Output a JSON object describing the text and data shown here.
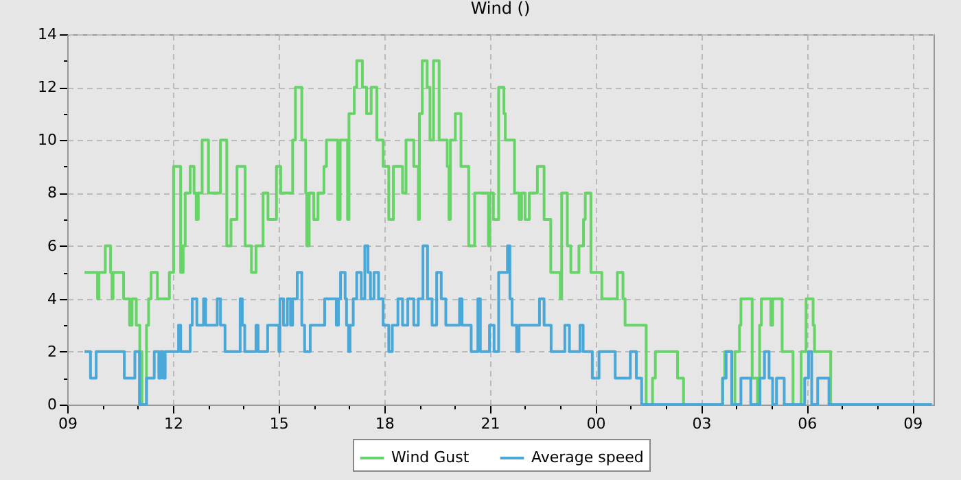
{
  "chart_data": {
    "type": "step",
    "title": "Wind ()",
    "legend": "bottom",
    "grid": true,
    "line_style": "solid",
    "marker": "none",
    "xlim": [
      9,
      33.6
    ],
    "ylim": [
      0,
      14
    ],
    "xticks": [
      {
        "value": 9,
        "label": "09"
      },
      {
        "value": 10,
        "label": null
      },
      {
        "value": 11,
        "label": null
      },
      {
        "value": 12,
        "label": "12"
      },
      {
        "value": 13,
        "label": null
      },
      {
        "value": 14,
        "label": null
      },
      {
        "value": 15,
        "label": "15"
      },
      {
        "value": 16,
        "label": null
      },
      {
        "value": 17,
        "label": null
      },
      {
        "value": 18,
        "label": "18"
      },
      {
        "value": 19,
        "label": null
      },
      {
        "value": 20,
        "label": null
      },
      {
        "value": 21,
        "label": "21"
      },
      {
        "value": 22,
        "label": null
      },
      {
        "value": 23,
        "label": null
      },
      {
        "value": 24,
        "label": "00"
      },
      {
        "value": 25,
        "label": null
      },
      {
        "value": 26,
        "label": null
      },
      {
        "value": 27,
        "label": "03"
      },
      {
        "value": 28,
        "label": null
      },
      {
        "value": 29,
        "label": null
      },
      {
        "value": 30,
        "label": "06"
      },
      {
        "value": 31,
        "label": null
      },
      {
        "value": 32,
        "label": null
      },
      {
        "value": 33,
        "label": "09"
      }
    ],
    "yticks": [
      0,
      {
        "value": 1,
        "label": null
      },
      2,
      {
        "value": 3,
        "label": null
      },
      4,
      {
        "value": 5,
        "label": null
      },
      6,
      {
        "value": 7,
        "label": null
      },
      8,
      {
        "value": 9,
        "label": null
      },
      10,
      {
        "value": 11,
        "label": null
      },
      12,
      {
        "value": 13,
        "label": null
      },
      14
    ],
    "series": [
      {
        "name": "Wind Gust",
        "color": "#66d466",
        "x": [
          9.49,
          9.86,
          9.9,
          10.08,
          10.23,
          10.27,
          10.3,
          10.6,
          10.77,
          10.84,
          10.96,
          11.06,
          11.12,
          11.25,
          11.31,
          11.38,
          11.56,
          11.9,
          12.02,
          12.22,
          12.29,
          12.35,
          12.49,
          12.6,
          12.66,
          12.72,
          12.83,
          13.01,
          13.35,
          13.53,
          13.65,
          13.82,
          14.05,
          14.23,
          14.36,
          14.56,
          14.7,
          14.94,
          15.06,
          15.4,
          15.48,
          15.66,
          15.77,
          15.8,
          15.87,
          16.0,
          16.12,
          16.29,
          16.36,
          16.68,
          16.75,
          16.96,
          17.0,
          17.15,
          17.22,
          17.38,
          17.5,
          17.63,
          17.79,
          17.97,
          18.13,
          18.26,
          18.52,
          18.62,
          18.84,
          18.97,
          19.0,
          19.08,
          19.22,
          19.3,
          19.4,
          19.56,
          19.79,
          19.84,
          19.88,
          20.02,
          20.18,
          20.4,
          20.57,
          20.79,
          20.96,
          21.0,
          21.1,
          21.25,
          21.4,
          21.44,
          21.7,
          21.83,
          21.9,
          22.0,
          22.12,
          22.35,
          22.54,
          22.73,
          23.0,
          23.04,
          23.2,
          23.3,
          23.53,
          23.66,
          23.71,
          23.87,
          24.18,
          24.62,
          24.78,
          24.84,
          25.44,
          25.62,
          25.7,
          26.33,
          26.5,
          27.61,
          27.67,
          27.87,
          27.96,
          28.09,
          28.13,
          28.45,
          28.6,
          28.66,
          28.71,
          28.98,
          29.03,
          29.3,
          29.61,
          29.84,
          29.98,
          30.18,
          30.22,
          30.68,
          33.55
        ],
        "values": [
          5,
          4,
          5,
          6,
          5,
          4,
          5,
          4,
          3,
          4,
          3,
          2,
          0,
          3,
          4,
          5,
          4,
          5,
          9,
          5,
          6,
          8,
          9,
          8,
          7,
          8,
          10,
          8,
          10,
          6,
          7,
          9,
          6,
          5,
          6,
          8,
          7,
          9,
          8,
          10,
          12,
          10,
          8,
          6,
          8,
          7,
          8,
          9,
          10,
          7,
          10,
          7,
          11,
          12,
          13,
          12,
          11,
          12,
          10,
          9,
          7,
          9,
          8,
          10,
          9,
          7,
          11,
          13,
          12,
          10,
          13,
          10,
          9,
          7,
          10,
          11,
          9,
          6,
          8,
          8,
          6,
          8,
          7,
          12,
          11,
          10,
          8,
          7,
          8,
          7,
          8,
          9,
          7,
          5,
          4,
          8,
          6,
          5,
          6,
          7,
          8,
          5,
          4,
          5,
          4,
          3,
          0,
          1,
          2,
          1,
          0,
          1,
          2,
          0,
          2,
          3,
          4,
          1,
          0,
          3,
          4,
          3,
          4,
          2,
          0,
          2,
          4,
          3,
          2,
          0,
          0
        ]
      },
      {
        "name": "Average speed",
        "color": "#4aa8d8",
        "x": [
          9.49,
          9.66,
          9.82,
          10.62,
          10.92,
          11.05,
          11.25,
          11.47,
          11.6,
          11.65,
          11.72,
          11.78,
          11.99,
          12.16,
          12.22,
          12.49,
          12.55,
          12.68,
          12.87,
          12.93,
          13.26,
          13.35,
          13.48,
          13.91,
          13.97,
          14.04,
          14.36,
          14.42,
          14.69,
          15.01,
          15.04,
          15.14,
          15.25,
          15.34,
          15.4,
          15.53,
          15.66,
          15.74,
          15.9,
          16.31,
          16.64,
          16.7,
          16.76,
          16.89,
          16.93,
          16.99,
          17.03,
          17.12,
          17.22,
          17.35,
          17.45,
          17.54,
          17.61,
          17.71,
          17.84,
          17.97,
          18.13,
          18.23,
          18.39,
          18.52,
          18.67,
          18.84,
          18.97,
          19.1,
          19.23,
          19.36,
          19.49,
          19.62,
          19.75,
          20.14,
          20.21,
          20.47,
          20.66,
          20.73,
          20.99,
          21.12,
          21.25,
          21.5,
          21.57,
          21.63,
          21.76,
          21.83,
          22.41,
          22.54,
          22.74,
          23.13,
          23.26,
          23.56,
          23.65,
          23.91,
          24.1,
          24.56,
          24.99,
          25.16,
          25.31,
          27.61,
          27.71,
          27.87,
          28.13,
          28.41,
          28.67,
          28.8,
          28.93,
          29.03,
          29.14,
          29.36,
          29.94,
          30.05,
          30.14,
          30.31,
          30.63,
          33.55
        ],
        "values": [
          2,
          1,
          2,
          1,
          2,
          0,
          1,
          2,
          1,
          2,
          1,
          2,
          2,
          3,
          2,
          3,
          4,
          3,
          4,
          3,
          4,
          3,
          2,
          4,
          3,
          2,
          3,
          2,
          3,
          2,
          4,
          3,
          4,
          3,
          4,
          5,
          3,
          2,
          3,
          4,
          3,
          4,
          5,
          4,
          3,
          2,
          3,
          4,
          5,
          4,
          6,
          5,
          4,
          5,
          4,
          3,
          2,
          3,
          4,
          3,
          4,
          3,
          4,
          6,
          4,
          3,
          5,
          4,
          3,
          4,
          3,
          2,
          4,
          2,
          3,
          2,
          5,
          6,
          4,
          3,
          2,
          3,
          4,
          3,
          2,
          3,
          2,
          3,
          2,
          1,
          2,
          1,
          2,
          1,
          0,
          1,
          2,
          0,
          1,
          0,
          1,
          2,
          1,
          0,
          1,
          0,
          1,
          2,
          0,
          1,
          0,
          0
        ]
      }
    ]
  }
}
